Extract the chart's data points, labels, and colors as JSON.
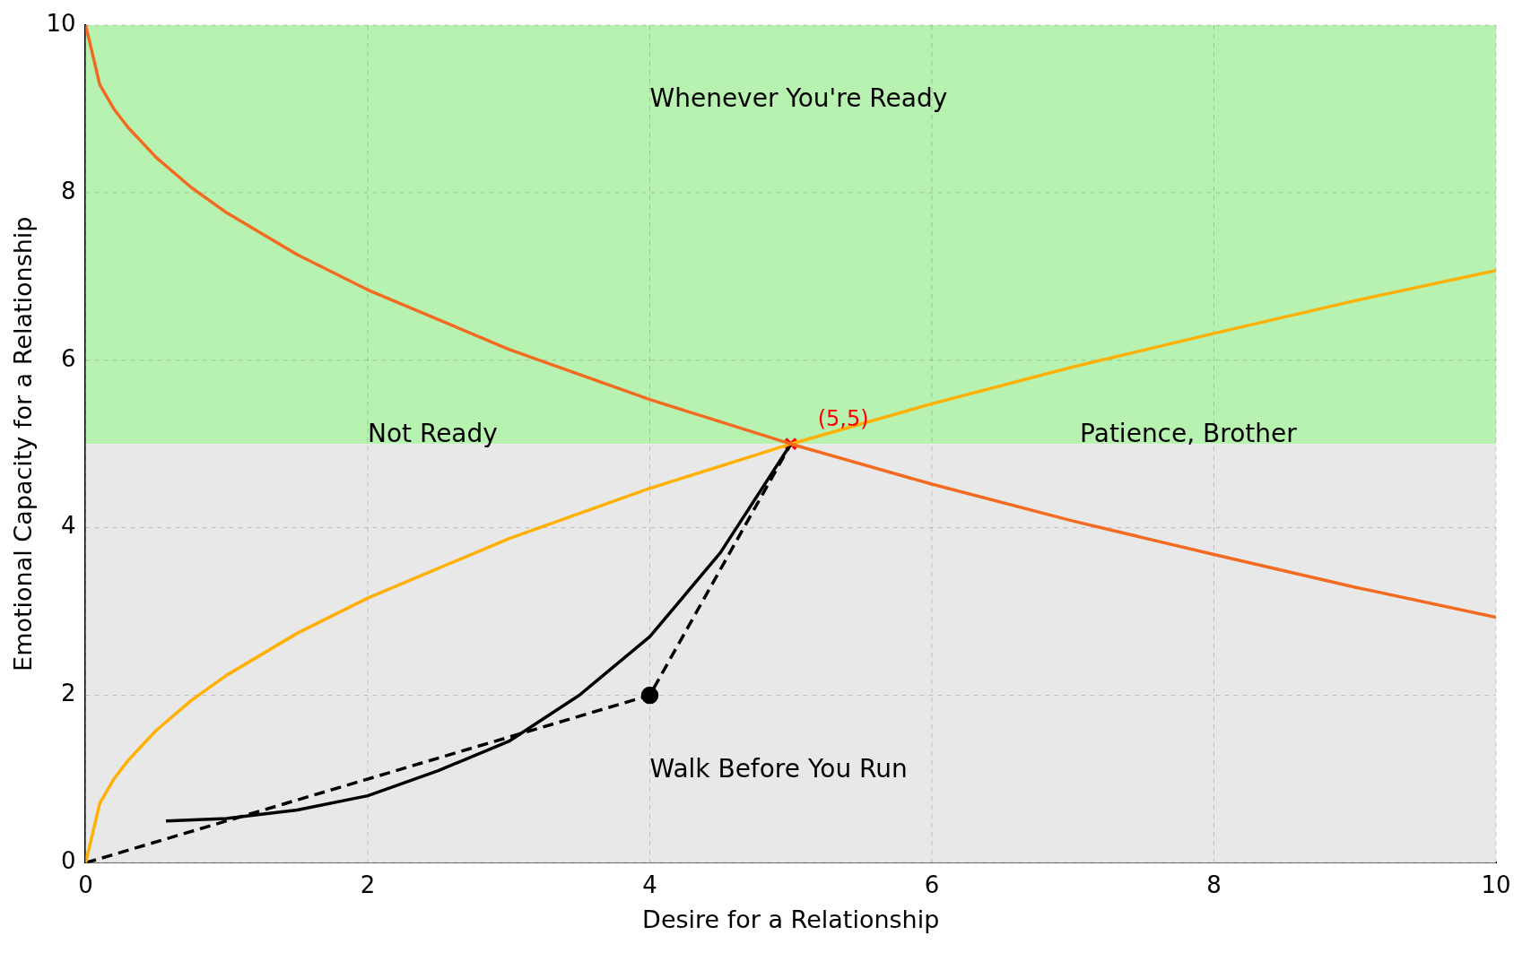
{
  "chart_data": {
    "type": "line",
    "xlabel": "Desire for a Relationship",
    "ylabel": "Emotional Capacity for a Relationship",
    "xlim": [
      0,
      10
    ],
    "ylim": [
      0,
      10
    ],
    "xticks": [
      0,
      2,
      4,
      6,
      8,
      10
    ],
    "yticks": [
      0,
      2,
      4,
      6,
      8,
      10
    ],
    "grid": true,
    "legend": false,
    "bands": [
      {
        "axis": "y",
        "from": 5,
        "to": 10,
        "color": "#b8f2b0"
      },
      {
        "axis": "y",
        "from": 0,
        "to": 5,
        "color": "#e8e8e8"
      }
    ],
    "series": [
      {
        "color": "#f26b21",
        "marker": "none",
        "line_style": "solid",
        "x": [
          0,
          0.1,
          0.2,
          0.3,
          0.5,
          0.75,
          1,
          1.5,
          2,
          3,
          4,
          5,
          6,
          7,
          8,
          9,
          10
        ],
        "values": [
          10,
          9.29,
          9,
          8.78,
          8.42,
          8.06,
          7.76,
          7.26,
          6.84,
          6.13,
          5.53,
          5,
          4.52,
          4.08,
          3.68,
          3.29,
          2.93
        ]
      },
      {
        "color": "#ffb000",
        "marker": "none",
        "line_style": "solid",
        "x": [
          0,
          0.1,
          0.2,
          0.3,
          0.5,
          0.75,
          1,
          1.5,
          2,
          3,
          4,
          5,
          6,
          7,
          8,
          9,
          10
        ],
        "values": [
          0,
          0.71,
          1,
          1.22,
          1.58,
          1.94,
          2.24,
          2.74,
          3.16,
          3.87,
          4.47,
          5,
          5.48,
          5.92,
          6.32,
          6.71,
          7.07
        ]
      },
      {
        "color": "#000000",
        "marker": "none",
        "line_style": "solid",
        "x": [
          0.57,
          1,
          1.5,
          2,
          2.5,
          3,
          3.5,
          4,
          4.5,
          5
        ],
        "values": [
          0.5,
          0.53,
          0.63,
          0.8,
          1.1,
          1.45,
          2,
          2.7,
          3.7,
          5
        ]
      },
      {
        "color": "#000000",
        "marker": "none",
        "line_style": "dashed",
        "x": [
          0,
          4,
          5
        ],
        "values": [
          0,
          2,
          5
        ]
      },
      {
        "type": "scatter",
        "color": "#000000",
        "marker": "circle",
        "x": [
          4
        ],
        "values": [
          2
        ]
      },
      {
        "type": "scatter",
        "color": "#ff0000",
        "marker": "cross",
        "x": [
          5
        ],
        "values": [
          5
        ]
      }
    ],
    "annotations": [
      "Whenever You're Ready",
      "Not Ready",
      "Patience, Brother",
      "Walk Before You Run",
      {
        "text": "(5,5)",
        "x": 5,
        "y": 5
      }
    ]
  }
}
